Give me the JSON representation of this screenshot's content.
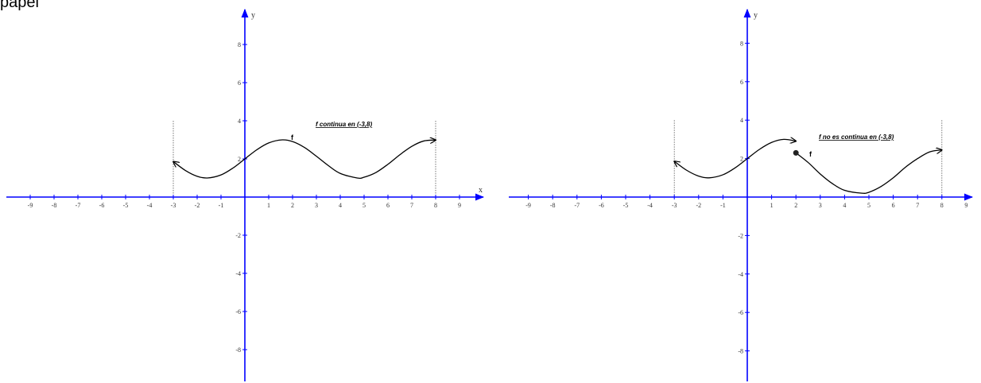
{
  "page": {
    "top_text": "papel"
  },
  "colors": {
    "axis": "#0000ff",
    "curve": "#000000",
    "guide": "#555555"
  },
  "chart_data": [
    {
      "type": "line",
      "title": "",
      "annotation": "f continua en (-3,8)",
      "function_label": "f",
      "xlabel": "x",
      "ylabel": "y",
      "xlim": [
        -10,
        10
      ],
      "ylim": [
        -10,
        10
      ],
      "x_ticks": [
        "-9",
        "-8",
        "-7",
        "-6",
        "-5",
        "-4",
        "-3",
        "-2",
        "-1",
        "1",
        "2",
        "3",
        "4",
        "5",
        "6",
        "7",
        "8",
        "9"
      ],
      "y_ticks": [
        "8",
        "6",
        "4",
        "2",
        "-2",
        "-4",
        "-6",
        "-8"
      ],
      "domain_guides": [
        -3,
        8
      ],
      "series": [
        {
          "x": [
            -3,
            -2.5,
            -2,
            -1.57,
            -1,
            -0.5,
            0,
            0.5,
            1,
            1.57,
            2,
            2.5,
            3,
            3.5,
            4,
            4.71,
            5,
            5.5,
            6,
            6.5,
            7,
            7.5,
            8
          ],
          "y": [
            1.86,
            1.4,
            1.09,
            1.0,
            1.16,
            1.52,
            2.0,
            2.48,
            2.84,
            3.0,
            2.91,
            2.6,
            2.14,
            1.65,
            1.24,
            1.0,
            1.04,
            1.29,
            1.72,
            2.22,
            2.66,
            2.94,
            2.99
          ],
          "arrow_start": true,
          "arrow_end": true
        }
      ]
    },
    {
      "type": "line",
      "title": "",
      "annotation": "f no es continua en (-3,8)",
      "function_label": "f",
      "xlabel": "",
      "ylabel": "y",
      "xlim": [
        -10,
        10
      ],
      "ylim": [
        -10,
        10
      ],
      "x_ticks": [
        "-9",
        "-8",
        "-7",
        "-6",
        "-5",
        "-4",
        "-3",
        "-2",
        "-1",
        "1",
        "2",
        "3",
        "4",
        "5",
        "6",
        "7",
        "8",
        "9"
      ],
      "y_ticks": [
        "8",
        "6",
        "4",
        "2",
        "-2",
        "-4",
        "-6",
        "-8"
      ],
      "domain_guides": [
        -3,
        8
      ],
      "series": [
        {
          "x": [
            -3,
            -2.5,
            -2,
            -1.57,
            -1,
            -0.5,
            0,
            0.5,
            1,
            1.5,
            2
          ],
          "y": [
            1.86,
            1.4,
            1.09,
            1.0,
            1.16,
            1.52,
            2.0,
            2.48,
            2.84,
            3.0,
            2.91
          ],
          "arrow_start": true,
          "arrow_end": true,
          "closed_point": false
        },
        {
          "x": [
            2,
            2.5,
            3,
            3.5,
            4,
            4.71,
            5,
            5.5,
            6,
            6.5,
            7,
            7.5,
            8
          ],
          "y": [
            2.3,
            1.8,
            1.2,
            0.7,
            0.35,
            0.2,
            0.25,
            0.55,
            1.0,
            1.55,
            2.0,
            2.35,
            2.45
          ],
          "arrow_start": false,
          "arrow_end": true,
          "closed_point": true
        }
      ]
    }
  ]
}
